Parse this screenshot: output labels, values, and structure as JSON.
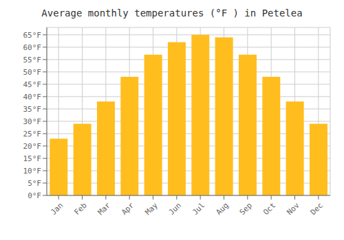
{
  "chart_data": {
    "type": "bar",
    "title": "Average monthly temperatures (°F ) in Petelea",
    "categories": [
      "Jan",
      "Feb",
      "Mar",
      "Apr",
      "May",
      "Jun",
      "Jul",
      "Aug",
      "Sep",
      "Oct",
      "Nov",
      "Dec"
    ],
    "values": [
      23,
      29,
      38,
      48,
      57,
      62,
      65,
      64,
      57,
      48,
      38,
      29
    ],
    "color": "#FFBE1E",
    "ylim": [
      0,
      68
    ],
    "yticks": [
      {
        "value": 0,
        "label": "0°F"
      },
      {
        "value": 5,
        "label": "5°F"
      },
      {
        "value": 10,
        "label": "10°F"
      },
      {
        "value": 15,
        "label": "15°F"
      },
      {
        "value": 20,
        "label": "20°F"
      },
      {
        "value": 25,
        "label": "25°F"
      },
      {
        "value": 30,
        "label": "30°F"
      },
      {
        "value": 35,
        "label": "35°F"
      },
      {
        "value": 40,
        "label": "40°F"
      },
      {
        "value": 45,
        "label": "45°F"
      },
      {
        "value": 50,
        "label": "50°F"
      },
      {
        "value": 55,
        "label": "55°F"
      },
      {
        "value": 60,
        "label": "60°F"
      },
      {
        "value": 65,
        "label": "65°F"
      }
    ],
    "grid": true
  }
}
